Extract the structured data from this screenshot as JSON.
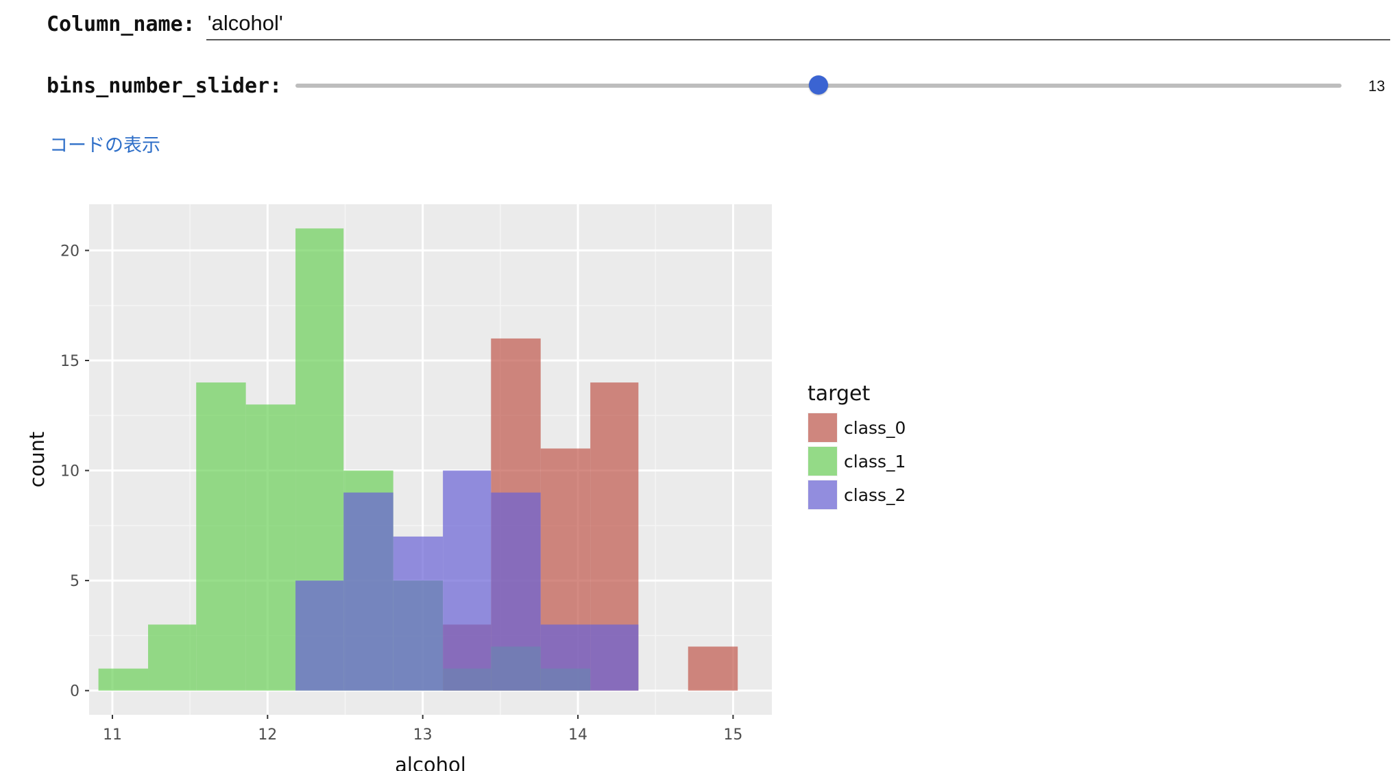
{
  "form": {
    "column_label": "Column_name:",
    "column_value": "'alcohol'",
    "bins_label": "bins_number_slider:",
    "bins_value": 13,
    "bins_value_text": "13",
    "bins_min": 1,
    "bins_max": 25,
    "accent": "#3b64d2"
  },
  "links": {
    "show_code": "コードの表示"
  },
  "chart_data": {
    "type": "bar",
    "subtype": "histogram",
    "xlabel": "alcohol",
    "ylabel": "count",
    "xlim": [
      10.85,
      15.25
    ],
    "ylim": [
      -1.1,
      22.1
    ],
    "x_ticks": [
      11,
      12,
      13,
      14,
      15
    ],
    "y_ticks": [
      0,
      5,
      10,
      15,
      20
    ],
    "grid": true,
    "legend": {
      "title": "target",
      "placement": "right"
    },
    "bin_edges": [
      10.91,
      11.23,
      11.54,
      11.86,
      12.18,
      12.49,
      12.81,
      13.13,
      13.44,
      13.76,
      14.08,
      14.39,
      14.71,
      15.03
    ],
    "series": [
      {
        "name": "class_0",
        "color": "#c1584d",
        "values": [
          0,
          0,
          0,
          0,
          0,
          0,
          0,
          3,
          16,
          11,
          14,
          0,
          2
        ]
      },
      {
        "name": "class_1",
        "color": "#6cd05a",
        "values": [
          1,
          3,
          14,
          13,
          21,
          10,
          5,
          1,
          2,
          1,
          0,
          0,
          0
        ]
      },
      {
        "name": "class_2",
        "color": "#6a63d6",
        "values": [
          0,
          0,
          0,
          0,
          5,
          9,
          7,
          10,
          9,
          3,
          3,
          0,
          0
        ]
      }
    ]
  }
}
